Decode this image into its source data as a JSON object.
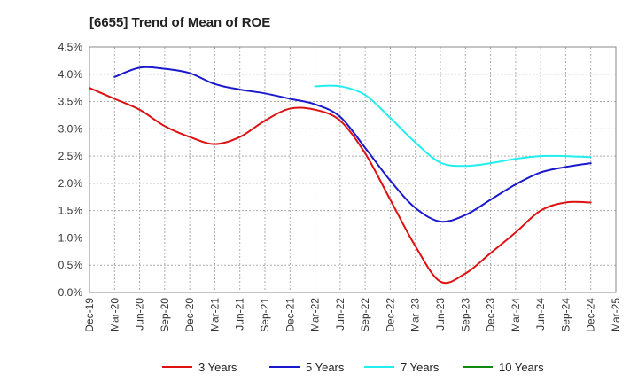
{
  "chart_data": {
    "type": "line",
    "title": "[6655]  Trend of Mean of ROE",
    "xlabel": "",
    "ylabel": "",
    "ylim": [
      0,
      0.045
    ],
    "y_ticks": [
      "0.0%",
      "0.5%",
      "1.0%",
      "1.5%",
      "2.0%",
      "2.5%",
      "3.0%",
      "3.5%",
      "4.0%",
      "4.5%"
    ],
    "x_ticks": [
      "Dec-19",
      "Mar-20",
      "Jun-20",
      "Sep-20",
      "Dec-20",
      "Mar-21",
      "Jun-21",
      "Sep-21",
      "Dec-21",
      "Mar-22",
      "Jun-22",
      "Sep-22",
      "Dec-22",
      "Mar-23",
      "Jun-23",
      "Sep-23",
      "Dec-23",
      "Mar-24",
      "Jun-24",
      "Sep-24",
      "Dec-24",
      "Mar-25"
    ],
    "grid": true,
    "legend_position": "bottom",
    "series": [
      {
        "name": "3 Years",
        "color": "#dd1111",
        "values": [
          0.0375,
          0.0355,
          0.0335,
          0.0305,
          0.0285,
          0.0272,
          0.0285,
          0.0315,
          0.0337,
          0.0335,
          0.0315,
          0.0255,
          0.017,
          0.0085,
          0.002,
          0.0035,
          0.0072,
          0.011,
          0.015,
          0.0165,
          0.0165,
          null
        ],
        "first_index": 0
      },
      {
        "name": "5 Years",
        "color": "#1a1acc",
        "values": [
          null,
          0.0395,
          0.0412,
          0.041,
          0.0402,
          0.0382,
          0.0372,
          0.0365,
          0.0355,
          0.0345,
          0.0322,
          0.0265,
          0.0205,
          0.0155,
          0.013,
          0.0142,
          0.017,
          0.0198,
          0.022,
          0.023,
          0.0237,
          null
        ],
        "first_index": 1
      },
      {
        "name": "7 Years",
        "color": "#22eeee",
        "values": [
          null,
          null,
          null,
          null,
          null,
          null,
          null,
          null,
          null,
          0.0378,
          0.0378,
          0.0362,
          0.032,
          0.0275,
          0.0238,
          0.0232,
          0.0237,
          0.0245,
          0.025,
          0.025,
          0.0248,
          null
        ],
        "first_index": 9
      },
      {
        "name": "10 Years",
        "color": "#118811",
        "values": [
          null,
          null,
          null,
          null,
          null,
          null,
          null,
          null,
          null,
          null,
          null,
          null,
          null,
          null,
          null,
          null,
          null,
          null,
          null,
          null,
          null,
          null
        ],
        "first_index": null
      }
    ]
  }
}
